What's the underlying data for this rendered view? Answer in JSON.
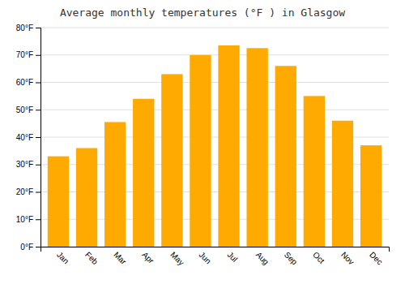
{
  "chart_data": {
    "type": "bar",
    "title": "Average monthly temperatures (°F ) in Glasgow",
    "categories": [
      "Jan",
      "Feb",
      "Mar",
      "Apr",
      "May",
      "Jun",
      "Jul",
      "Aug",
      "Sep",
      "Oct",
      "Nov",
      "Dec"
    ],
    "values": [
      33,
      36,
      45.5,
      54,
      63,
      70,
      73.5,
      72.5,
      66,
      55,
      46,
      37
    ],
    "color": "#FFAA00",
    "ylim": [
      0,
      80
    ],
    "yticks": [
      {
        "value": 0,
        "label": "0°F"
      },
      {
        "value": 10,
        "label": "10°F"
      },
      {
        "value": 20,
        "label": "20°F"
      },
      {
        "value": 30,
        "label": "30°F"
      },
      {
        "value": 40,
        "label": "40°F"
      },
      {
        "value": 50,
        "label": "50°F"
      },
      {
        "value": 60,
        "label": "60°F"
      },
      {
        "value": 70,
        "label": "70°F"
      },
      {
        "value": 80,
        "label": "80°F"
      }
    ],
    "grid": true
  }
}
